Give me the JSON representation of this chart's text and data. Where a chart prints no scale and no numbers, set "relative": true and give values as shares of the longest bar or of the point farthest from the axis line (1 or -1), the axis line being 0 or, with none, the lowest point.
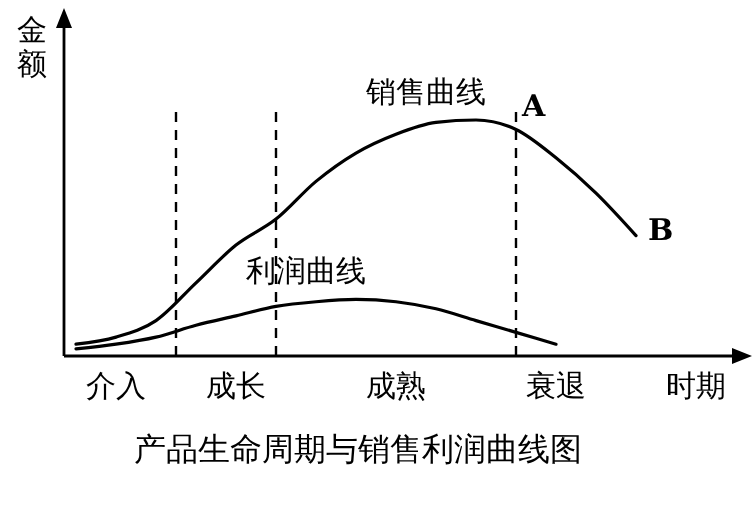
{
  "chart_data": {
    "type": "line",
    "title": "产品生命周期与销售利润曲线图",
    "xlabel": "时期",
    "ylabel": "金额",
    "relative": true,
    "categories": [
      null,
      "介入",
      null,
      null,
      "成长",
      null,
      null,
      null,
      "成熟",
      null,
      null,
      null,
      "衰退",
      null,
      null,
      null,
      null
    ],
    "series": [
      {
        "name": "销售曲线",
        "color": "#000000",
        "values": [
          0.05,
          0.08,
          0.15,
          0.31,
          0.47,
          0.58,
          0.74,
          0.86,
          0.94,
          0.99,
          1,
          0.96,
          0.84,
          0.69,
          0.51,
          null,
          null
        ]
      },
      {
        "name": "利润曲线",
        "color": "#000000",
        "values": [
          0.03,
          0.05,
          0.08,
          0.13,
          0.17,
          0.21,
          0.23,
          0.24,
          0.23,
          0.2,
          0.15,
          0.1,
          0.05,
          null,
          null,
          null,
          null
        ]
      }
    ],
    "annotations": [
      "A",
      "B"
    ]
  }
}
